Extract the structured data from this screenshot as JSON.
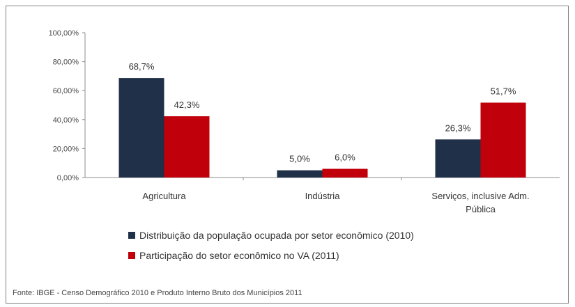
{
  "chart_data": {
    "type": "bar",
    "categories": [
      "Agricultura",
      "Indústria",
      "Serviços, inclusive Adm. Pública"
    ],
    "category_lines": [
      [
        "Agricultura"
      ],
      [
        "Indústria"
      ],
      [
        "Serviços, inclusive Adm.",
        "Pública"
      ]
    ],
    "series": [
      {
        "name": "Distribuição da população ocupada por setor econômico (2010)",
        "values": [
          68.7,
          5.0,
          26.3
        ],
        "labels": [
          "68,7%",
          "5,0%",
          "26,3%"
        ],
        "color": "#1f3048"
      },
      {
        "name": "Participação do setor econômico no VA (2011)",
        "values": [
          42.3,
          6.0,
          51.7
        ],
        "labels": [
          "42,3%",
          "6,0%",
          "51,7%"
        ],
        "color": "#c0000b"
      }
    ],
    "ylim": [
      0,
      100
    ],
    "yticks": [
      "0,00%",
      "20,00%",
      "40,00%",
      "60,00%",
      "80,00%",
      "100,00%"
    ],
    "ytick_values": [
      0,
      20,
      40,
      60,
      80,
      100
    ],
    "grid": false,
    "legend_position": "bottom"
  },
  "source_note": "Fonte: IBGE - Censo Demográfico 2010 e Produto Interno Bruto dos Municípios 2011"
}
